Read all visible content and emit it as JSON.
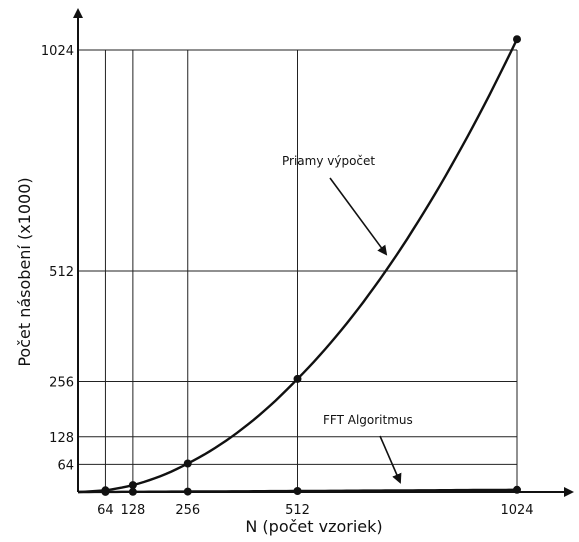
{
  "chart_data": {
    "type": "line",
    "xlabel": "N (počet vzoriek)",
    "ylabel": "Počet násobení (x1000)",
    "x_ticks": [
      64,
      128,
      256,
      512,
      1024
    ],
    "y_ticks": [
      64,
      128,
      256,
      512,
      1024
    ],
    "xlim": [
      0,
      1024
    ],
    "ylim": [
      0,
      1024
    ],
    "grid": true,
    "series": [
      {
        "name": "Priamy výpočet",
        "x": [
          64,
          128,
          256,
          512,
          1024
        ],
        "y": [
          4,
          16,
          66,
          262,
          1049
        ]
      },
      {
        "name": "FFT Algoritmus",
        "x": [
          64,
          128,
          256,
          512,
          1024
        ],
        "y": [
          0.2,
          0.45,
          1.0,
          2.3,
          5.1
        ]
      }
    ],
    "annotations": [
      {
        "text": "Priamy výpočet",
        "series": 0
      },
      {
        "text": "FFT Algoritmus",
        "series": 1
      }
    ]
  }
}
